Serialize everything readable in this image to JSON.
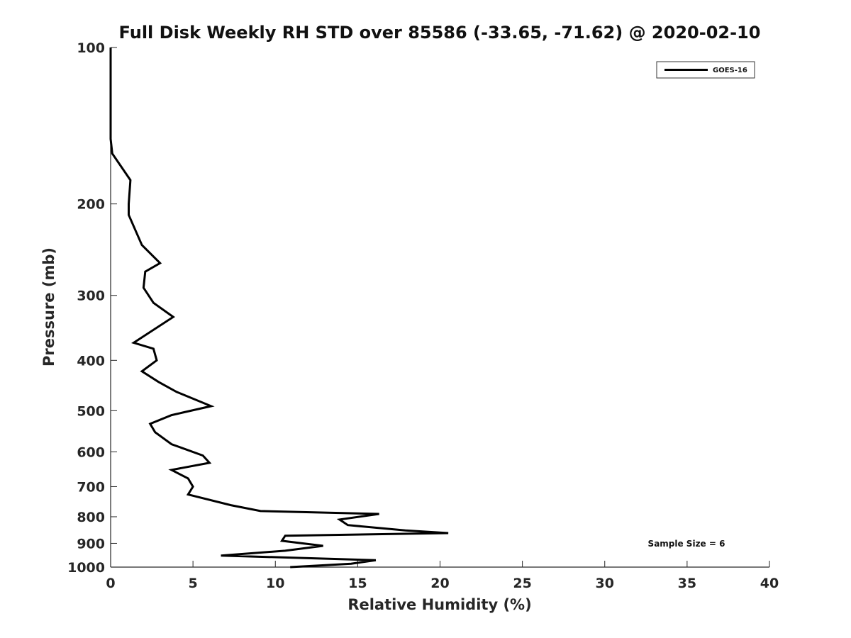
{
  "chart_data": {
    "type": "line",
    "title": "Full Disk Weekly RH STD over 85586 (-33.65, -71.62) @ 2020-02-10",
    "xlabel": "Relative Humidity (%)",
    "ylabel": "Pressure (mb)",
    "xlim": [
      0,
      40
    ],
    "ylim": [
      100,
      1000
    ],
    "y_scale": "log",
    "y_reversed": true,
    "x_ticks": [
      0,
      5,
      10,
      15,
      20,
      25,
      30,
      35,
      40
    ],
    "y_ticks": [
      100,
      200,
      300,
      400,
      500,
      600,
      700,
      800,
      900,
      1000
    ],
    "grid": false,
    "legend_position": "top-right",
    "series": [
      {
        "name": "GOES-16",
        "color": "#000000",
        "x": [
          0.0,
          0.0,
          0.0,
          0.1,
          1.2,
          1.1,
          1.1,
          1.9,
          3.0,
          2.1,
          2.0,
          2.6,
          3.8,
          1.4,
          2.6,
          2.8,
          1.9,
          2.9,
          4.0,
          6.1,
          3.7,
          2.4,
          2.7,
          3.7,
          5.6,
          6.0,
          3.7,
          4.7,
          5.0,
          4.7,
          7.3,
          9.1,
          16.3,
          13.9,
          14.4,
          17.9,
          20.5,
          10.6,
          10.4,
          12.9,
          10.6,
          6.7,
          16.1,
          14.6,
          10.9
        ],
        "y": [
          100,
          125,
          150,
          160,
          180,
          200,
          210,
          240,
          260,
          270,
          290,
          310,
          330,
          370,
          380,
          400,
          420,
          440,
          460,
          490,
          510,
          530,
          550,
          580,
          610,
          630,
          650,
          675,
          700,
          725,
          760,
          780,
          790,
          810,
          830,
          850,
          860,
          870,
          890,
          910,
          930,
          950,
          970,
          985,
          1000
        ]
      }
    ],
    "annotations": [
      "Sample Size = 6"
    ]
  }
}
